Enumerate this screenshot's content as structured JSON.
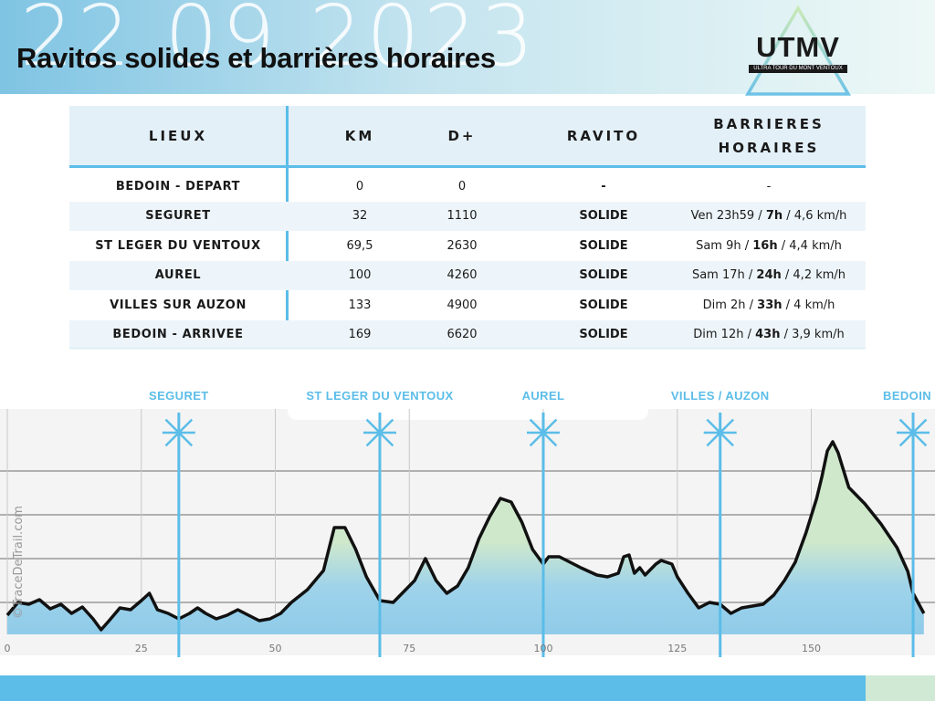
{
  "header": {
    "date_watermark": "22 09 2023",
    "title": "Ravitos solides et barrières horaires"
  },
  "logo": {
    "text": "UTMV",
    "subtitle": "ULTRA TOUR DU MONT VENTOUX"
  },
  "table": {
    "headers": {
      "lieux": "LIEUX",
      "km": "KM",
      "dplus": "D+",
      "ravito": "RAVITO",
      "barrieres_line1": "BARRIERES",
      "barrieres_line2": "HORAIRES"
    },
    "rows": [
      {
        "lieu": "BEDOIN - DEPART",
        "km": "0",
        "dplus": "0",
        "ravito": "-",
        "barr_pre": "-",
        "barr_bold": "",
        "barr_post": ""
      },
      {
        "lieu": "SEGURET",
        "km": "32",
        "dplus": "1110",
        "ravito": "SOLIDE",
        "barr_pre": "Ven 23h59 / ",
        "barr_bold": "7h",
        "barr_post": " / 4,6 km/h"
      },
      {
        "lieu": "ST LEGER DU VENTOUX",
        "km": "69,5",
        "dplus": "2630",
        "ravito": "SOLIDE",
        "barr_pre": "Sam 9h / ",
        "barr_bold": "16h",
        "barr_post": " / 4,4 km/h"
      },
      {
        "lieu": "AUREL",
        "km": "100",
        "dplus": "4260",
        "ravito": "SOLIDE",
        "barr_pre": "Sam 17h / ",
        "barr_bold": "24h",
        "barr_post": " / 4,2 km/h"
      },
      {
        "lieu": "VILLES SUR AUZON",
        "km": "133",
        "dplus": "4900",
        "ravito": "SOLIDE",
        "barr_pre": "Dim 2h / ",
        "barr_bold": "33h",
        "barr_post": " / 4 km/h"
      },
      {
        "lieu": "BEDOIN - ARRIVEE",
        "km": "169",
        "dplus": "6620",
        "ravito": "SOLIDE",
        "barr_pre": "Dim 12h / ",
        "barr_bold": "43h",
        "barr_post": " / 3,9 km/h"
      }
    ]
  },
  "profile": {
    "credit": "©TraceDeTrail.com",
    "x_ticks": [
      "0",
      "25",
      "50",
      "75",
      "100",
      "125",
      "150"
    ],
    "stops": [
      {
        "label": "SEGURET",
        "km": 32
      },
      {
        "label": "ST LEGER DU VENTOUX",
        "km": 69.5
      },
      {
        "label": "AUREL",
        "km": 100
      },
      {
        "label": "VILLES / AUZON",
        "km": 133
      },
      {
        "label": "BEDOIN",
        "km": 169
      }
    ],
    "colors": {
      "line": "#111111",
      "stop": "#5bbde8",
      "fill_top": "#cfe8cc",
      "fill_bottom": "#8fcbe9"
    }
  }
}
